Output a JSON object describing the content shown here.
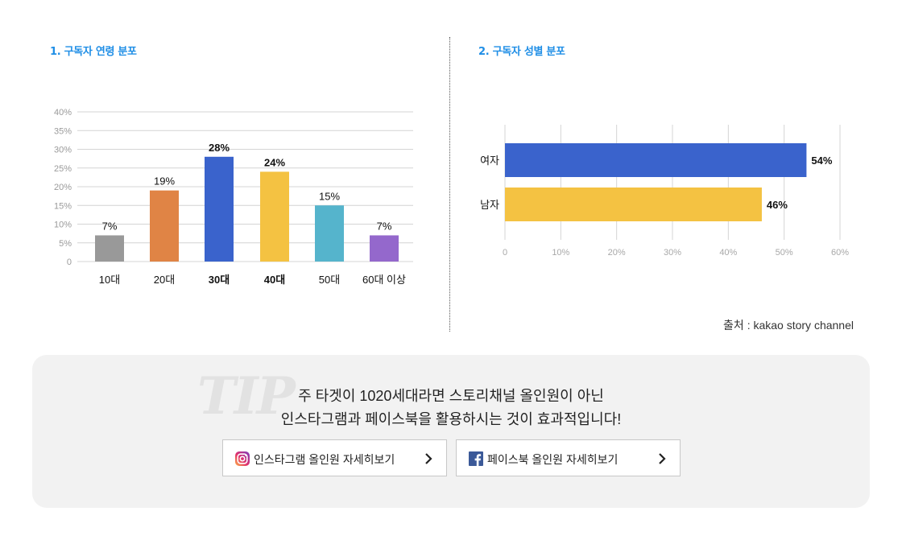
{
  "left_panel": {
    "title": "1. 구독자 연령 분포"
  },
  "right_panel": {
    "title": "2. 구독자 성별 분포"
  },
  "chart_data": [
    {
      "type": "bar",
      "title": "1. 구독자 연령 분포",
      "categories": [
        "10대",
        "20대",
        "30대",
        "40대",
        "50대",
        "60대 이상"
      ],
      "values": [
        7,
        19,
        28,
        24,
        15,
        7
      ],
      "value_labels": [
        "7%",
        "19%",
        "28%",
        "24%",
        "15%",
        "7%"
      ],
      "bold_categories": [
        "30대",
        "40대"
      ],
      "bar_colors": [
        "#999999",
        "#e08445",
        "#3a63cc",
        "#f4c242",
        "#55b4cc",
        "#9468cc"
      ],
      "y_ticks": [
        "40%",
        "35%",
        "30%",
        "25%",
        "20%",
        "15%",
        "10%",
        "5%",
        "0"
      ],
      "y_tick_values": [
        40,
        35,
        30,
        25,
        20,
        15,
        10,
        5,
        0
      ],
      "ylim": [
        0,
        40
      ],
      "grid": true,
      "xlabel": "",
      "ylabel": ""
    },
    {
      "type": "bar",
      "orientation": "horizontal",
      "title": "2. 구독자 성별 분포",
      "categories": [
        "여자",
        "남자"
      ],
      "values": [
        54,
        46
      ],
      "value_labels": [
        "54%",
        "46%"
      ],
      "bar_colors": [
        "#3a63cc",
        "#f4c242"
      ],
      "x_ticks": [
        "0",
        "10%",
        "20%",
        "30%",
        "40%",
        "50%",
        "60%"
      ],
      "x_tick_values": [
        0,
        10,
        20,
        30,
        40,
        50,
        60
      ],
      "xlim": [
        0,
        60
      ],
      "grid": true,
      "xlabel": "",
      "ylabel": ""
    }
  ],
  "source": "출처 : kakao story channel",
  "tip": {
    "watermark": "TIP",
    "line1": "주 타겟이 1020세대라면 스토리채널 올인원이 아닌",
    "line2": "인스타그램과 페이스북을 활용하시는 것이 효과적입니다!"
  },
  "buttons": {
    "instagram_label": "인스타그램 올인원 자세히보기",
    "facebook_label": "페이스북 올인원 자세히보기"
  },
  "icons": {
    "instagram": "instagram-icon",
    "facebook": "facebook-icon",
    "chevron": "chevron-right-icon"
  }
}
